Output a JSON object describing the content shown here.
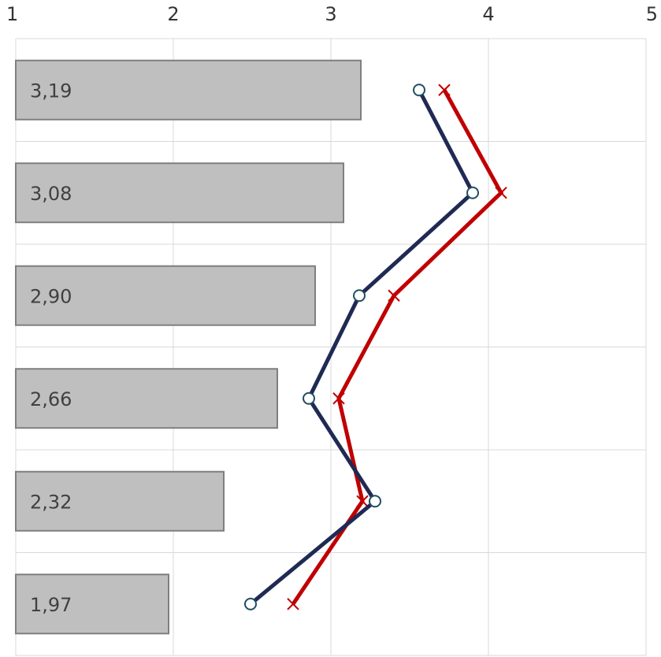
{
  "chart_data": {
    "type": "bar",
    "orientation": "horizontal",
    "xlim": [
      1,
      5
    ],
    "x_ticks": [
      "1",
      "2",
      "3",
      "4",
      "5"
    ],
    "x_axis_position": "top",
    "grid": true,
    "legend": "none",
    "categories": [
      "",
      "",
      "",
      "",
      "",
      ""
    ],
    "bars": {
      "values": [
        3.19,
        3.08,
        2.9,
        2.66,
        2.32,
        1.97
      ],
      "labels": [
        "3,19",
        "3,08",
        "2,90",
        "2,66",
        "2,32",
        "1,97"
      ],
      "color": "#bfbfbf",
      "border_color": "#7f7f7f"
    },
    "series": [
      {
        "type": "line",
        "marker": "circle",
        "color": "#1f2a54",
        "marker_color": "#1f4e5f",
        "values": [
          3.56,
          3.9,
          3.18,
          2.86,
          3.28,
          2.49
        ]
      },
      {
        "type": "line",
        "marker": "x",
        "color": "#c00000",
        "values": [
          3.72,
          4.08,
          3.4,
          3.05,
          3.2,
          2.76
        ]
      }
    ]
  }
}
